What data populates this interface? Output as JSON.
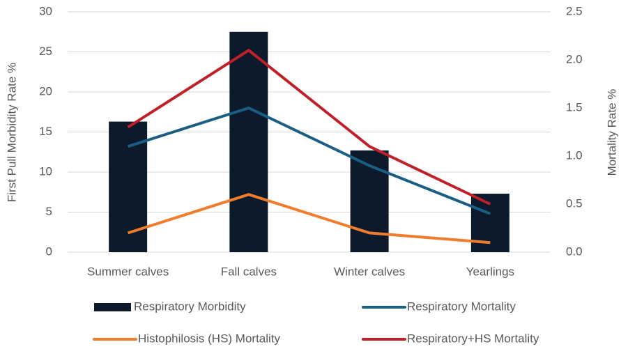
{
  "chart_data": {
    "type": "bar",
    "categories": [
      "Summer calves",
      "Fall calves",
      "Winter calves",
      "Yearlings"
    ],
    "ylabel": "First Pull Morbidity Rate %",
    "y2label": "Mortality Rate %",
    "ylim": [
      0,
      30
    ],
    "yticks": [
      0,
      5,
      10,
      15,
      20,
      25,
      30
    ],
    "y2lim": [
      0,
      2.5
    ],
    "y2ticks": [
      {
        "value": 0,
        "label": "0.0"
      },
      0.5,
      {
        "value": 1,
        "label": "1.0"
      },
      1.5,
      {
        "value": 2,
        "label": "2.0"
      },
      2.5
    ],
    "grid": true,
    "legend": "bottom",
    "series": [
      {
        "name": "Respiratory Morbidity",
        "type": "bar",
        "color": "#0c1a2b",
        "values": [
          16.3,
          27.5,
          12.7,
          7.3
        ]
      },
      {
        "name": "Respiratory Mortality",
        "type": "line",
        "axis": "y2",
        "color": "#1b5e84",
        "values": [
          1.1,
          1.5,
          0.9,
          0.4
        ]
      },
      {
        "name": "Histophilosis (HS) Mortality",
        "type": "line",
        "axis": "y2",
        "color": "#f07c2e",
        "values": [
          0.2,
          0.6,
          0.2,
          0.1
        ]
      },
      {
        "name": "Respiratory+HS Mortality",
        "type": "line",
        "axis": "y2",
        "color": "#c0202a",
        "values": [
          1.3,
          2.1,
          1.1,
          0.5
        ]
      }
    ]
  }
}
